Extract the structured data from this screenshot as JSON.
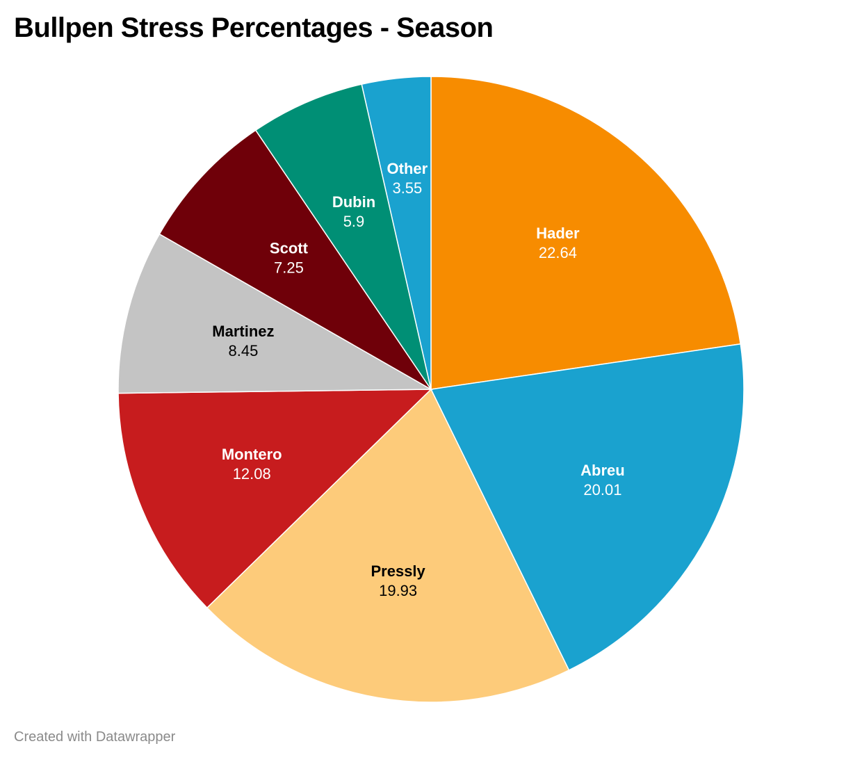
{
  "title": "Bullpen Stress Percentages - Season",
  "footer": "Created with Datawrapper",
  "chart_data": {
    "type": "pie",
    "title": "Bullpen Stress Percentages - Season",
    "slices": [
      {
        "label": "Hader",
        "value": 22.64,
        "color": "#f78c00",
        "text_color": "#ffffff"
      },
      {
        "label": "Abreu",
        "value": 20.01,
        "color": "#1aa2cf",
        "text_color": "#ffffff"
      },
      {
        "label": "Pressly",
        "value": 19.93,
        "color": "#fdcb7a",
        "text_color": "#000000"
      },
      {
        "label": "Montero",
        "value": 12.08,
        "color": "#c71c1e",
        "text_color": "#ffffff"
      },
      {
        "label": "Martinez",
        "value": 8.45,
        "color": "#c4c4c4",
        "text_color": "#000000"
      },
      {
        "label": "Scott",
        "value": 7.25,
        "color": "#6f0009",
        "text_color": "#ffffff"
      },
      {
        "label": "Dubin",
        "value": 5.9,
        "color": "#008f75",
        "text_color": "#ffffff"
      },
      {
        "label": "Other",
        "value": 3.55,
        "color": "#1aa2cf",
        "text_color": "#ffffff"
      }
    ]
  }
}
